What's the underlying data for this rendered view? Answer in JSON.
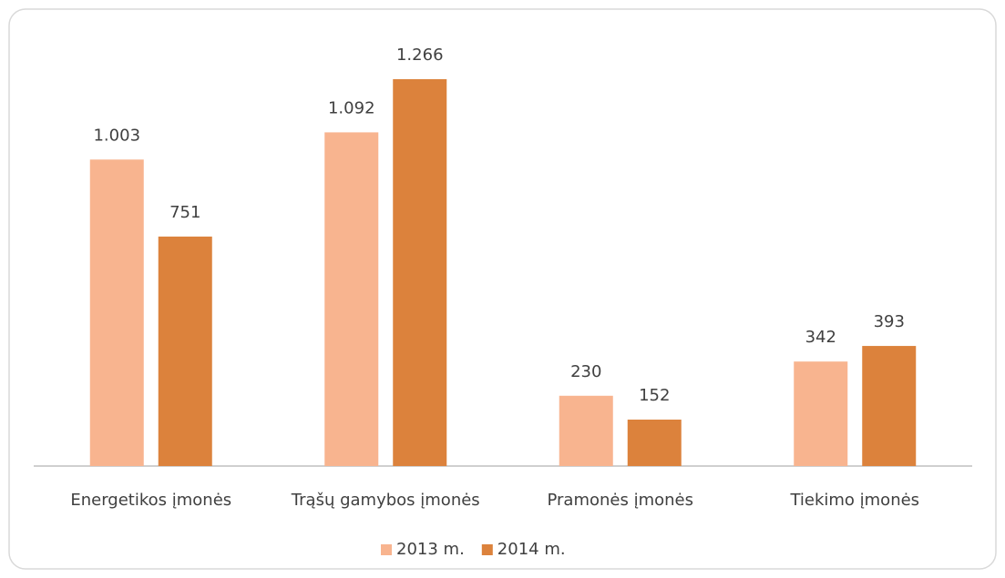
{
  "chart_data": {
    "type": "bar",
    "categories": [
      "Energetikos įmonės",
      "Trąšų gamybos įmonės",
      "Pramonės įmonės",
      "Tiekimo įmonės"
    ],
    "series": [
      {
        "name": "2013 m.",
        "color": "#f8b48f",
        "values": [
          1003,
          1092,
          230,
          342
        ],
        "value_labels": [
          "1.003",
          "1.092",
          "230",
          "342"
        ]
      },
      {
        "name": "2014 m.",
        "color": "#dc823c",
        "values": [
          751,
          1266,
          152,
          393
        ],
        "value_labels": [
          "751",
          "1.266",
          "152",
          "393"
        ]
      }
    ],
    "ylim": [
      0,
      1400
    ],
    "legend": "bottom"
  }
}
